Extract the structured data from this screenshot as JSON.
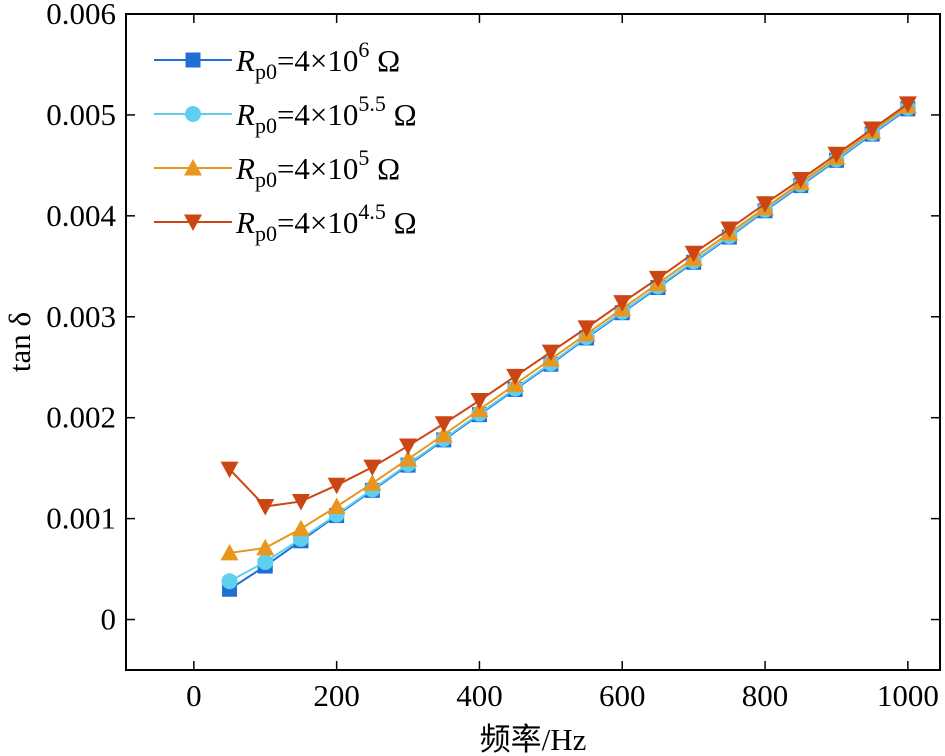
{
  "chart_data": {
    "type": "line",
    "xlabel": "频率/Hz",
    "ylabel": "tan δ",
    "xlim": [
      -95,
      1045
    ],
    "ylim": [
      -0.0005,
      0.006
    ],
    "xticks": [
      0,
      200,
      400,
      600,
      800,
      1000
    ],
    "yticks": [
      0,
      0.001,
      0.002,
      0.003,
      0.004,
      0.005,
      0.006
    ],
    "ytick_labels": [
      "0",
      "0.001",
      "0.002",
      "0.003",
      "0.004",
      "0.005",
      "0.006"
    ],
    "grid": false,
    "legend_position": "top-left",
    "x": [
      50,
      100,
      150,
      200,
      250,
      300,
      350,
      400,
      450,
      500,
      550,
      600,
      650,
      700,
      750,
      800,
      850,
      900,
      950,
      1000
    ],
    "series": [
      {
        "name": "R_p0=4×10^6 Ω",
        "label": {
          "sym": "R",
          "sub": "p0",
          "mid": "=4×10",
          "sup": "6",
          "unit": " Ω"
        },
        "color": "#1f6fd6",
        "marker": "square",
        "values": [
          0.0003,
          0.00053,
          0.00078,
          0.00103,
          0.00128,
          0.00153,
          0.00178,
          0.00203,
          0.00228,
          0.00253,
          0.00279,
          0.00304,
          0.00329,
          0.00354,
          0.00379,
          0.00405,
          0.0043,
          0.00455,
          0.00481,
          0.00506
        ]
      },
      {
        "name": "R_p0=4×10^5.5 Ω",
        "label": {
          "sym": "R",
          "sub": "p0",
          "mid": "=4×10",
          "sup": "5.5",
          "unit": " Ω"
        },
        "color": "#5ed0ee",
        "marker": "circle",
        "values": [
          0.00038,
          0.00057,
          0.0008,
          0.00104,
          0.00129,
          0.00154,
          0.00179,
          0.00204,
          0.00229,
          0.00254,
          0.0028,
          0.00305,
          0.0033,
          0.00355,
          0.0038,
          0.00406,
          0.00431,
          0.00456,
          0.00482,
          0.00507
        ]
      },
      {
        "name": "R_p0=4×10^5 Ω",
        "label": {
          "sym": "R",
          "sub": "p0",
          "mid": "=4×10",
          "sup": "5",
          "unit": " Ω"
        },
        "color": "#e8961e",
        "marker": "triangle-up",
        "values": [
          0.00066,
          0.00071,
          0.0009,
          0.00112,
          0.00135,
          0.00159,
          0.00183,
          0.00208,
          0.00233,
          0.00258,
          0.00283,
          0.00308,
          0.00333,
          0.00358,
          0.00383,
          0.00408,
          0.00433,
          0.00458,
          0.00484,
          0.00509
        ]
      },
      {
        "name": "R_p0=4×10^4.5 Ω",
        "label": {
          "sym": "R",
          "sub": "p0",
          "mid": "=4×10",
          "sup": "4.5",
          "unit": " Ω"
        },
        "color": "#cc4515",
        "marker": "triangle-down",
        "values": [
          0.00149,
          0.00112,
          0.00117,
          0.00133,
          0.00151,
          0.00172,
          0.00194,
          0.00217,
          0.00241,
          0.00265,
          0.00289,
          0.00314,
          0.00338,
          0.00363,
          0.00387,
          0.00412,
          0.00436,
          0.00461,
          0.00486,
          0.00511
        ]
      }
    ]
  }
}
